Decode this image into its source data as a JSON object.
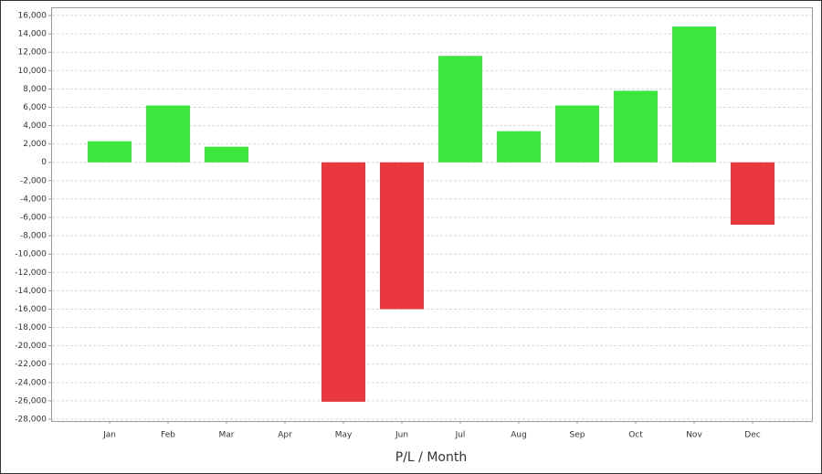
{
  "chart_data": {
    "type": "bar",
    "x_label": "P/L / Month",
    "categories": [
      "Jan",
      "Feb",
      "Mar",
      "Apr",
      "May",
      "Jun",
      "Jul",
      "Aug",
      "Sep",
      "Oct",
      "Nov",
      "Dec"
    ],
    "values": [
      2300,
      6200,
      1700,
      0,
      -26100,
      -16000,
      11600,
      3400,
      6200,
      7800,
      14800,
      -6800
    ],
    "positive_color": "#3de63d",
    "negative_color": "#e8383d",
    "ylim": [
      -28200,
      16900
    ],
    "yticks": [
      {
        "value": 16000,
        "label": "16,000"
      },
      {
        "value": 14000,
        "label": "14,000"
      },
      {
        "value": 12000,
        "label": "12,000"
      },
      {
        "value": 10000,
        "label": "10,000"
      },
      {
        "value": 8000,
        "label": "8,000"
      },
      {
        "value": 6000,
        "label": "6,000"
      },
      {
        "value": 4000,
        "label": "4,000"
      },
      {
        "value": 2000,
        "label": "2,000"
      },
      0,
      {
        "value": -2000,
        "label": "-2,000"
      },
      {
        "value": -4000,
        "label": "-4,000"
      },
      {
        "value": -6000,
        "label": "-6,000"
      },
      {
        "value": -8000,
        "label": "-8,000"
      },
      {
        "value": -10000,
        "label": "-10,000"
      },
      {
        "value": -12000,
        "label": "-12,000"
      },
      {
        "value": -14000,
        "label": "-14,000"
      },
      {
        "value": -16000,
        "label": "-16,000"
      },
      {
        "value": -18000,
        "label": "-18,000"
      },
      {
        "value": -20000,
        "label": "-20,000"
      },
      {
        "value": -22000,
        "label": "-22,000"
      },
      {
        "value": -24000,
        "label": "-24,000"
      },
      {
        "value": -26000,
        "label": "-26,000"
      },
      {
        "value": -28000,
        "label": "-28,000"
      }
    ],
    "grid": true
  }
}
